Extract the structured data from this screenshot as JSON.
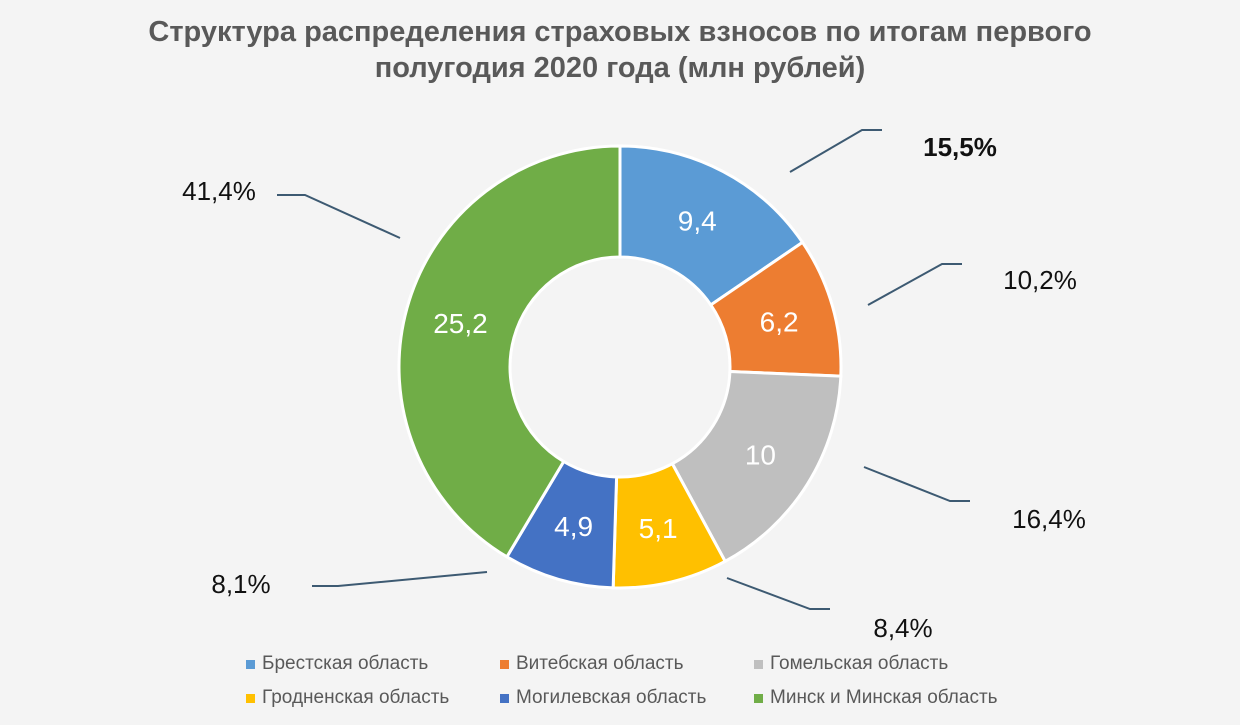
{
  "chart_data": {
    "type": "donut",
    "title_lines": [
      "Структура распределения страховых взносов по итогам первого",
      "полугодия 2020 года (млн рублей)"
    ],
    "categories": [
      "Брестская область",
      "Витебская область",
      "Гомельская область",
      "Гродненская область",
      "Могилевская область",
      "Минск и Минская область"
    ],
    "values": [
      9.4,
      6.2,
      10,
      5.1,
      4.9,
      25.2
    ],
    "value_labels": [
      "9,4",
      "6,2",
      "10",
      "5,1",
      "4,9",
      "25,2"
    ],
    "percent_labels": [
      "15,5%",
      "10,2%",
      "16,4%",
      "8,4%",
      "8,1%",
      "41,4%"
    ],
    "colors": [
      "#5b9bd5",
      "#ed7d31",
      "#bfbfbf",
      "#ffc000",
      "#4472c4",
      "#70ad47"
    ],
    "legend_position": "bottom"
  }
}
